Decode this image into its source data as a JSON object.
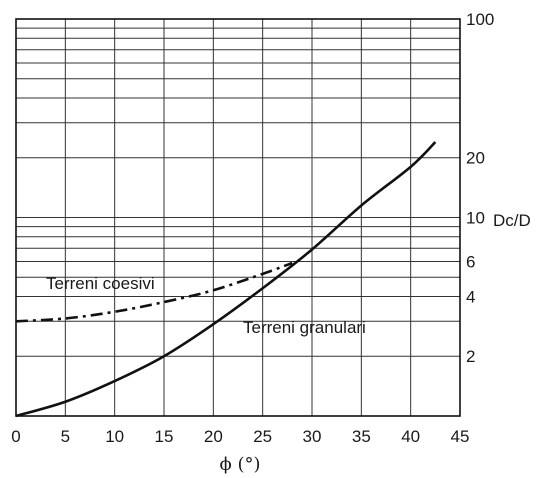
{
  "chart_data": {
    "type": "line",
    "title": "",
    "xlabel": "ϕ (°)",
    "ylabel": "Dc/D",
    "xlim": [
      0,
      45
    ],
    "ylim": [
      1,
      100
    ],
    "y_scale": "log",
    "grid": true,
    "x_ticks": [
      "0",
      "5",
      "10",
      "15",
      "20",
      "25",
      "30",
      "35",
      "40",
      "45"
    ],
    "x_tick_values": [
      0,
      5,
      10,
      15,
      20,
      25,
      30,
      35,
      40,
      45
    ],
    "y_ticks": [
      "100",
      "20",
      "10",
      "6",
      "4",
      "2"
    ],
    "y_tick_values": [
      100,
      20,
      10,
      6,
      4,
      2
    ],
    "series": [
      {
        "name": "Terreni granulari",
        "style": "solid",
        "color": "#111111",
        "x": [
          0,
          5,
          10,
          15,
          20,
          25,
          30,
          35,
          40,
          42.5
        ],
        "y": [
          1.0,
          1.18,
          1.5,
          2.0,
          2.9,
          4.4,
          6.9,
          11.5,
          18.0,
          24.0
        ]
      },
      {
        "name": "Terreni coesivi",
        "style": "dashdot",
        "color": "#111111",
        "x": [
          0,
          5,
          10,
          15,
          20,
          25,
          28
        ],
        "y": [
          3.0,
          3.1,
          3.35,
          3.75,
          4.3,
          5.2,
          5.9
        ]
      }
    ],
    "annotations": [
      {
        "text": "Terreni coesivi",
        "x": 3,
        "y": 4.6
      },
      {
        "text": "Terreni granulari",
        "x": 22.5,
        "y": 3.3
      }
    ]
  }
}
